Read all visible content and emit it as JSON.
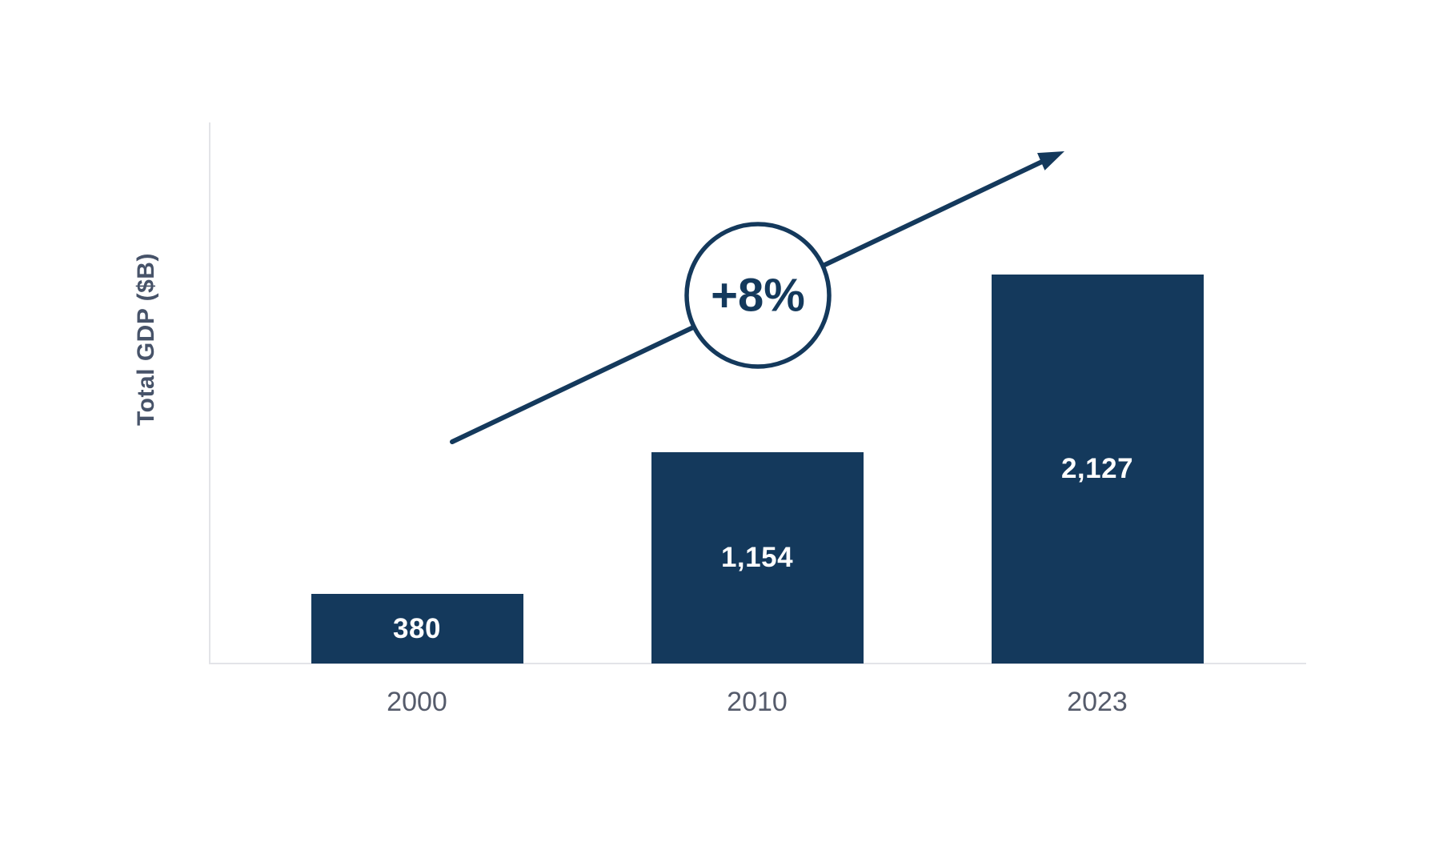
{
  "chart_data": {
    "type": "bar",
    "title": "",
    "ylabel": "Total GDP ($B)",
    "xlabel": "",
    "categories": [
      "2000",
      "2010",
      "2023"
    ],
    "values": [
      380,
      1154,
      2127
    ],
    "value_labels": [
      "380",
      "1,154",
      "2,127"
    ],
    "ylim": [
      0,
      2950
    ],
    "grid": false,
    "legend": "none",
    "annotation": {
      "label": "+8%",
      "meaning": "growth-trend-arrow"
    },
    "colors": {
      "bar": "#14395c",
      "value_label": "#ffffff",
      "axis_line": "#e3e4e8",
      "tick_label": "#555b6b",
      "ylabel": "#475369",
      "annotation": "#14395c",
      "background": "#ffffff"
    }
  }
}
